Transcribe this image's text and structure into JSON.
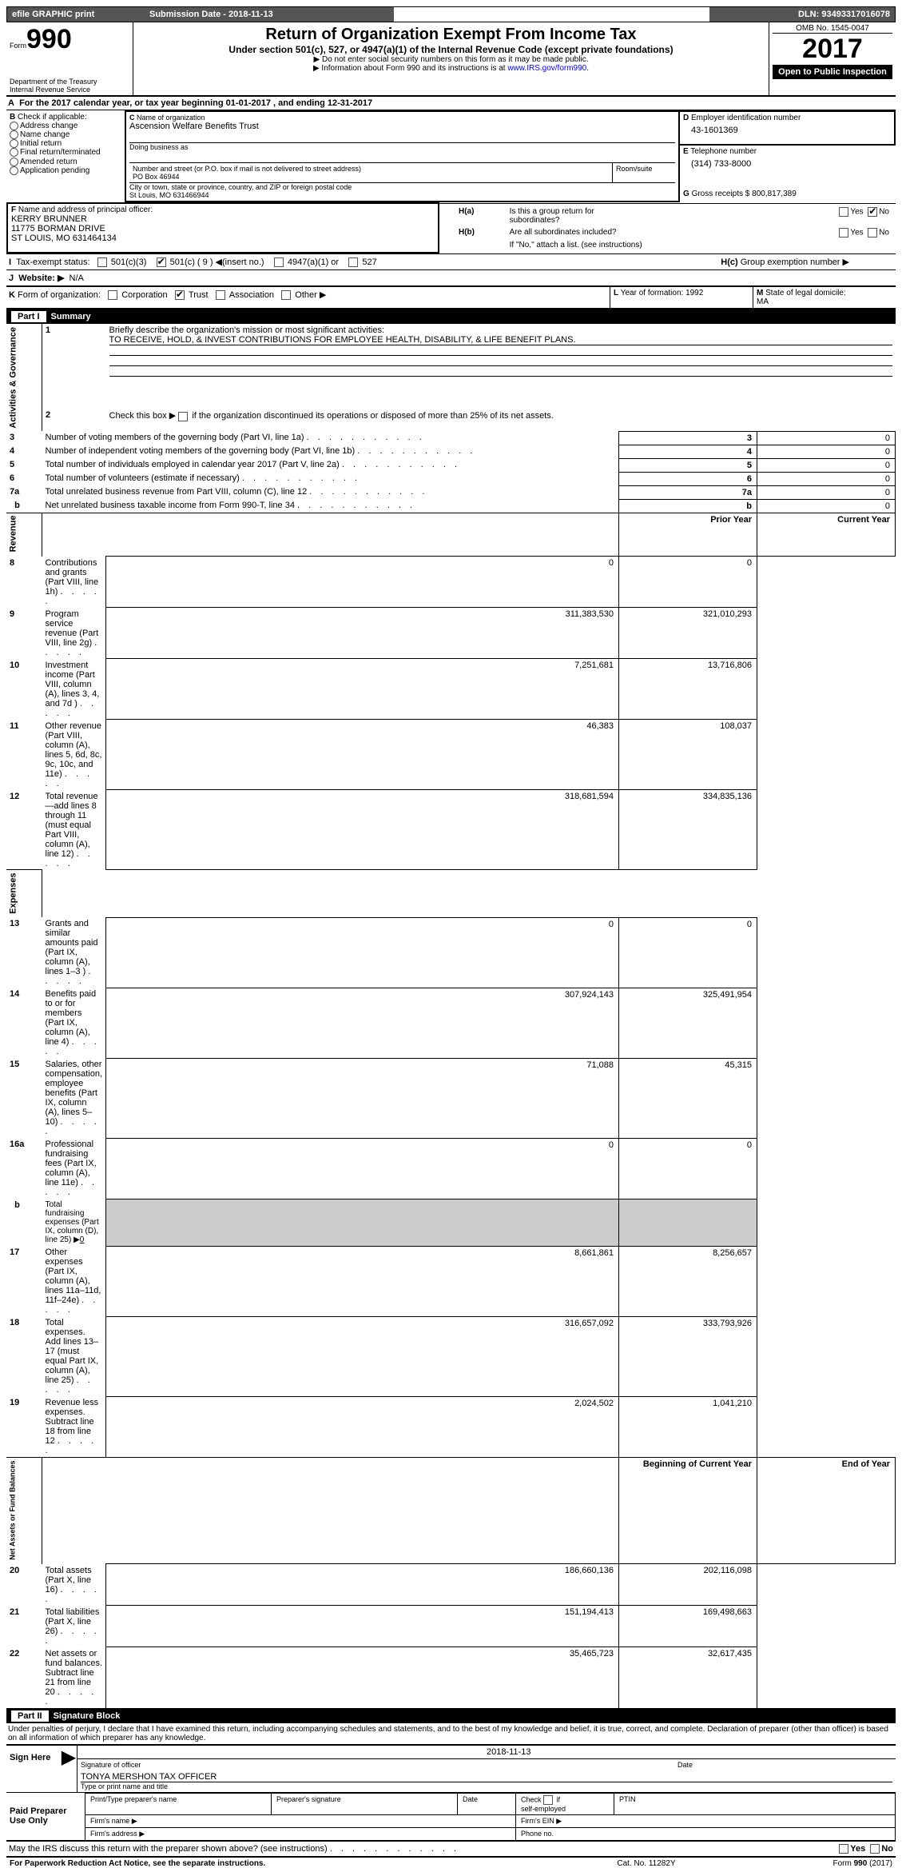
{
  "topbar": {
    "efile": "efile GRAPHIC print",
    "subdate_lbl": "Submission Date - ",
    "subdate": "2018-11-13",
    "dln_lbl": "DLN: ",
    "dln": "93493317016078"
  },
  "header": {
    "form": "Form",
    "num": "990",
    "dept": "Department of the Treasury",
    "irs": "Internal Revenue Service",
    "title": "Return of Organization Exempt From Income Tax",
    "sub": "Under section 501(c), 527, or 4947(a)(1) of the Internal Revenue Code (except private foundations)",
    "l1": "▶ Do not enter social security numbers on this form as it may be made public.",
    "l2": "▶ Information about Form 990 and its instructions is at ",
    "url": "www.IRS.gov/form990",
    "omb_lbl": "OMB No. 1545-0047",
    "year": "2017",
    "open": "Open to Public Inspection"
  },
  "A": {
    "txt": "For the 2017 calendar year, or tax year beginning ",
    "d1": "01-01-2017",
    "mid": " , and ending ",
    "d2": "12-31-2017"
  },
  "B": {
    "hdr": "Check if applicable:",
    "items": [
      "Address change",
      "Name change",
      "Initial return",
      "Final return/terminated",
      "Amended return",
      "Application pending"
    ]
  },
  "C": {
    "name_lbl": "Name of organization",
    "name": "Ascension Welfare Benefits Trust",
    "dba": "Doing business as",
    "street_lbl": "Number and street (or P.O. box if mail is not delivered to street address)",
    "room": "Room/suite",
    "street": "PO Box 46944",
    "city_lbl": "City or town, state or province, country, and ZIP or foreign postal code",
    "city": "St Louis, MO  631466944"
  },
  "D": {
    "lbl": "Employer identification number",
    "val": "43-1601369"
  },
  "E": {
    "lbl": "Telephone number",
    "val": "(314) 733-8000"
  },
  "G": {
    "lbl": "Gross receipts $ ",
    "val": "800,817,389"
  },
  "F": {
    "lbl": "Name and address of principal officer:",
    "name": "KERRY BRUNNER",
    "l2": "11775 BORMAN DRIVE",
    "l3": "ST LOUIS, MO  631464134"
  },
  "H": {
    "a": "Is this a group return for",
    "a2": "subordinates?",
    "b": "Are all subordinates included?",
    "bnote": "If \"No,\" attach a list. (see instructions)",
    "c": "Group exemption number ▶",
    "yes": "Yes",
    "no": "No"
  },
  "I": {
    "lbl": "Tax-exempt status:",
    "c1": "501(c)(3)",
    "c2": "501(c) (",
    "c2b": ") ◀(insert no.)",
    "c2v": "9",
    "c3": "4947(a)(1) or",
    "c4": "527"
  },
  "J": {
    "lbl": "Website: ▶",
    "val": "N/A"
  },
  "K": {
    "lbl": "Form of organization:",
    "c1": "Corporation",
    "c2": "Trust",
    "c3": "Association",
    "c4": "Other ▶"
  },
  "L": {
    "lbl": "Year of formation: ",
    "val": "1992"
  },
  "M": {
    "lbl": "State of legal domicile:",
    "val": "MA"
  },
  "part1": {
    "hdr": "Summary",
    "part": "Part I",
    "q1": "Briefly describe the organization's mission or most significant activities:",
    "a1": "TO RECEIVE, HOLD, & INVEST CONTRIBUTIONS FOR EMPLOYEE HEALTH, DISABILITY, & LIFE BENEFIT PLANS.",
    "q2": "Check this box ▶  if the organization discontinued its operations or disposed of more than 25% of its net assets.",
    "sideA": "Activities & Governance",
    "sideR": "Revenue",
    "sideE": "Expenses",
    "sideN": "Net Assets or Fund Balances",
    "prior": "Prior Year",
    "curr": "Current Year",
    "boy": "Beginning of Current Year",
    "eoy": "End of Year",
    "rows_gov": [
      {
        "n": "3",
        "t": "Number of voting members of the governing body (Part VI, line 1a)",
        "v": "0"
      },
      {
        "n": "4",
        "t": "Number of independent voting members of the governing body (Part VI, line 1b)",
        "v": "0"
      },
      {
        "n": "5",
        "t": "Total number of individuals employed in calendar year 2017 (Part V, line 2a)",
        "v": "0"
      },
      {
        "n": "6",
        "t": "Total number of volunteers (estimate if necessary)",
        "v": "0"
      },
      {
        "n": "7a",
        "t": "Total unrelated business revenue from Part VIII, column (C), line 12",
        "v": "0"
      },
      {
        "n": "b",
        "t": "Net unrelated business taxable income from Form 990-T, line 34",
        "v": "0",
        "b": true
      }
    ],
    "rows_rev": [
      {
        "n": "8",
        "t": "Contributions and grants (Part VIII, line 1h)",
        "p": "0",
        "c": "0"
      },
      {
        "n": "9",
        "t": "Program service revenue (Part VIII, line 2g)",
        "p": "311,383,530",
        "c": "321,010,293"
      },
      {
        "n": "10",
        "t": "Investment income (Part VIII, column (A), lines 3, 4, and 7d )",
        "p": "7,251,681",
        "c": "13,716,806"
      },
      {
        "n": "11",
        "t": "Other revenue (Part VIII, column (A), lines 5, 6d, 8c, 9c, 10c, and 11e)",
        "p": "46,383",
        "c": "108,037"
      },
      {
        "n": "12",
        "t": "Total revenue—add lines 8 through 11 (must equal Part VIII, column (A), line 12)",
        "p": "318,681,594",
        "c": "334,835,136"
      }
    ],
    "rows_exp": [
      {
        "n": "13",
        "t": "Grants and similar amounts paid (Part IX, column (A), lines 1–3 )",
        "p": "0",
        "c": "0"
      },
      {
        "n": "14",
        "t": "Benefits paid to or for members (Part IX, column (A), line 4)",
        "p": "307,924,143",
        "c": "325,491,954"
      },
      {
        "n": "15",
        "t": "Salaries, other compensation, employee benefits (Part IX, column (A), lines 5–10)",
        "p": "71,088",
        "c": "45,315"
      },
      {
        "n": "16a",
        "t": "Professional fundraising fees (Part IX, column (A), line 11e)",
        "p": "0",
        "c": "0"
      },
      {
        "n": "b",
        "t": "Total fundraising expenses (Part IX, column (D), line 25) ▶",
        "sub": "0",
        "shade": true,
        "b": true
      },
      {
        "n": "17",
        "t": "Other expenses (Part IX, column (A), lines 11a–11d, 11f–24e)",
        "p": "8,661,861",
        "c": "8,256,657"
      },
      {
        "n": "18",
        "t": "Total expenses. Add lines 13–17 (must equal Part IX, column (A), line 25)",
        "p": "316,657,092",
        "c": "333,793,926"
      },
      {
        "n": "19",
        "t": "Revenue less expenses. Subtract line 18 from line 12",
        "p": "2,024,502",
        "c": "1,041,210"
      }
    ],
    "rows_net": [
      {
        "n": "20",
        "t": "Total assets (Part X, line 16)",
        "p": "186,660,136",
        "c": "202,116,098"
      },
      {
        "n": "21",
        "t": "Total liabilities (Part X, line 26)",
        "p": "151,194,413",
        "c": "169,498,663"
      },
      {
        "n": "22",
        "t": "Net assets or fund balances. Subtract line 21 from line 20",
        "p": "35,465,723",
        "c": "32,617,435"
      }
    ]
  },
  "part2": {
    "part": "Part II",
    "hdr": "Signature Block",
    "decl": "Under penalties of perjury, I declare that I have examined this return, including accompanying schedules and statements, and to the best of my knowledge and belief, it is true, correct, and complete. Declaration of preparer (other than officer) is based on all information of which preparer has any knowledge.",
    "sign": "Sign Here",
    "sig_lbl": "Signature of officer",
    "sig_date": "2018-11-13",
    "date_lbl": "Date",
    "name": "TONYA MERSHON TAX OFFICER",
    "name_lbl": "Type or print name and title",
    "paid": "Paid Preparer Use Only",
    "p_name": "Print/Type preparer's name",
    "p_sig": "Preparer's signature",
    "p_date": "Date",
    "p_chk": "Check",
    "p_self": "self-employed",
    "p_if": "if",
    "ptin": "PTIN",
    "firm": "Firm's name  ▶",
    "ein": "Firm's EIN ▶",
    "addr": "Firm's address ▶",
    "phone": "Phone no.",
    "discuss": "May the IRS discuss this return with the preparer shown above? (see instructions)",
    "yes": "Yes",
    "no": "No"
  },
  "footer": {
    "l": "For Paperwork Reduction Act Notice, see the separate instructions.",
    "m": "Cat. No. 11282Y",
    "r1": "Form ",
    "r2": "990",
    "r3": " (2017)"
  }
}
